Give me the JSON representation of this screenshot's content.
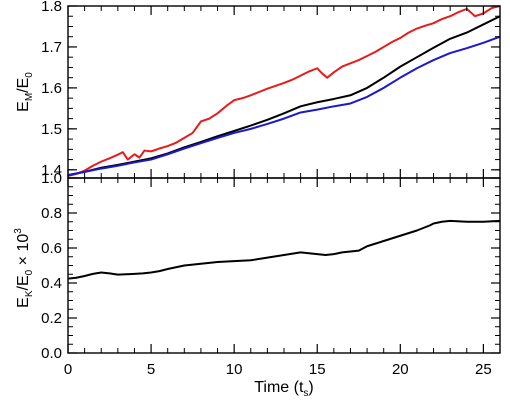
{
  "chart_data": [
    {
      "type": "line",
      "panel": "top",
      "ylabel": {
        "main": "E",
        "sub": "M",
        "rest": "/E",
        "sub2": "0"
      },
      "xlim": [
        0,
        26
      ],
      "ylim": [
        1.38,
        1.8
      ],
      "yticks": [
        1.4,
        1.5,
        1.6,
        1.7,
        1.8
      ],
      "ytick_labels": [
        "1.4",
        "1.5",
        "1.6",
        "1.7",
        "1.8"
      ],
      "xticks": [
        0,
        5,
        10,
        15,
        20,
        25
      ],
      "colors": {
        "red": "#e81b1b",
        "black": "#000000",
        "blue": "#1a1acc"
      },
      "series": [
        {
          "color": "#e81b1b",
          "x": [
            0,
            0.5,
            1,
            1.5,
            2,
            2.5,
            3,
            3.3,
            3.6,
            4,
            4.3,
            4.6,
            5,
            5.5,
            6,
            6.5,
            7,
            7.5,
            8,
            8.5,
            9,
            9.5,
            10,
            10.5,
            11,
            11.5,
            12,
            12.5,
            13,
            13.5,
            14,
            14.5,
            15,
            15.3,
            15.6,
            16,
            16.5,
            17,
            17.5,
            18,
            18.5,
            19,
            19.5,
            20,
            20.5,
            21,
            21.5,
            22,
            22.5,
            23,
            23.5,
            24,
            24.5,
            25,
            25.5,
            26
          ],
          "y": [
            1.385,
            1.39,
            1.398,
            1.41,
            1.42,
            1.428,
            1.437,
            1.443,
            1.425,
            1.438,
            1.43,
            1.447,
            1.445,
            1.452,
            1.458,
            1.466,
            1.478,
            1.49,
            1.518,
            1.525,
            1.538,
            1.555,
            1.57,
            1.575,
            1.582,
            1.59,
            1.598,
            1.605,
            1.612,
            1.62,
            1.63,
            1.64,
            1.648,
            1.635,
            1.625,
            1.638,
            1.652,
            1.66,
            1.668,
            1.678,
            1.688,
            1.7,
            1.712,
            1.722,
            1.735,
            1.745,
            1.752,
            1.758,
            1.768,
            1.775,
            1.785,
            1.793,
            1.775,
            1.782,
            1.795,
            1.8
          ]
        },
        {
          "color": "#000000",
          "x": [
            0,
            1,
            2,
            3,
            4,
            5,
            6,
            7,
            8,
            9,
            10,
            11,
            12,
            13,
            14,
            15,
            16,
            17,
            18,
            19,
            20,
            21,
            22,
            23,
            24,
            25,
            26
          ],
          "y": [
            1.387,
            1.395,
            1.405,
            1.412,
            1.42,
            1.428,
            1.44,
            1.455,
            1.468,
            1.482,
            1.495,
            1.508,
            1.522,
            1.538,
            1.555,
            1.565,
            1.573,
            1.582,
            1.6,
            1.625,
            1.652,
            1.675,
            1.698,
            1.72,
            1.735,
            1.755,
            1.775
          ]
        },
        {
          "color": "#1a1acc",
          "x": [
            0,
            1,
            2,
            3,
            4,
            5,
            6,
            7,
            8,
            9,
            10,
            11,
            12,
            13,
            14,
            15,
            16,
            17,
            18,
            19,
            20,
            21,
            22,
            23,
            24,
            25,
            26
          ],
          "y": [
            1.387,
            1.395,
            1.403,
            1.41,
            1.418,
            1.425,
            1.438,
            1.452,
            1.465,
            1.478,
            1.49,
            1.5,
            1.512,
            1.525,
            1.54,
            1.547,
            1.555,
            1.562,
            1.578,
            1.6,
            1.625,
            1.648,
            1.668,
            1.685,
            1.697,
            1.71,
            1.725
          ]
        }
      ]
    },
    {
      "type": "line",
      "panel": "bottom",
      "ylabel": {
        "main": "E",
        "sub": "K",
        "rest": "/E",
        "sub2": "0",
        "tail": " × 10",
        "sup": "3"
      },
      "xlabel": {
        "main": "Time (t",
        "sub": "s",
        "tail": ")"
      },
      "xlim": [
        0,
        26
      ],
      "ylim": [
        0,
        1.0
      ],
      "yticks": [
        0,
        0.2,
        0.4,
        0.6,
        0.8,
        1.0
      ],
      "ytick_labels": [
        "0.0",
        "0.2",
        "0.4",
        "0.6",
        "0.8",
        "1.0"
      ],
      "xticks": [
        0,
        5,
        10,
        15,
        20,
        25
      ],
      "xtick_labels": [
        "0",
        "5",
        "10",
        "15",
        "20",
        "25"
      ],
      "series": [
        {
          "color": "#000000",
          "x": [
            0,
            0.5,
            1,
            1.5,
            2,
            2.5,
            3,
            3.5,
            4,
            4.5,
            5,
            5.5,
            6,
            7,
            8,
            9,
            10,
            11,
            12,
            13,
            14,
            15,
            15.5,
            16,
            16.5,
            17,
            17.5,
            18,
            19,
            20,
            21,
            21.8,
            22,
            22.5,
            23,
            24,
            25,
            26
          ],
          "y": [
            0.425,
            0.43,
            0.44,
            0.452,
            0.46,
            0.455,
            0.448,
            0.45,
            0.452,
            0.455,
            0.46,
            0.468,
            0.48,
            0.5,
            0.51,
            0.52,
            0.525,
            0.53,
            0.545,
            0.56,
            0.575,
            0.565,
            0.56,
            0.565,
            0.575,
            0.58,
            0.585,
            0.61,
            0.64,
            0.67,
            0.7,
            0.73,
            0.74,
            0.75,
            0.755,
            0.75,
            0.75,
            0.755
          ]
        }
      ]
    }
  ]
}
